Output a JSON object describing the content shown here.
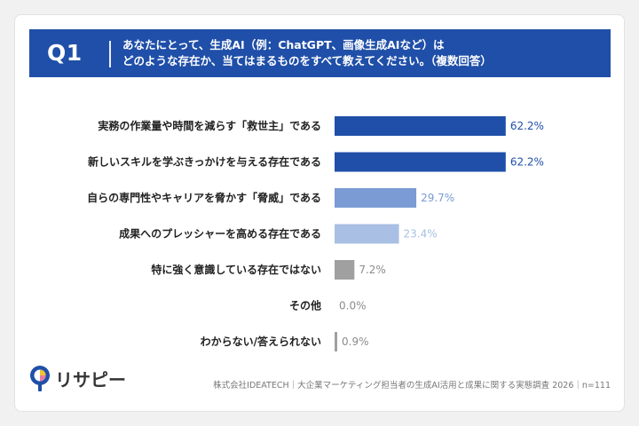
{
  "question": {
    "label": "Q1",
    "line1": "あなたにとって、生成AI（例：ChatGPT、画像生成AIなど）は",
    "line2": "どのような存在か、当てはまるものをすべて教えてください。（複数回答）"
  },
  "chart_data": {
    "type": "bar",
    "orientation": "horizontal",
    "categories": [
      "実務の作業量や時間を減らす「救世主」である",
      "新しいスキルを学ぶきっかけを与える存在である",
      "自らの専門性やキャリアを脅かす「脅威」である",
      "成果へのプレッシャーを高める存在である",
      "特に強く意識している存在ではない",
      "その他",
      "わからない/答えられない"
    ],
    "values": [
      62.2,
      62.2,
      29.7,
      23.4,
      7.2,
      0.0,
      0.9
    ],
    "value_labels": [
      "62.2%",
      "62.2%",
      "29.7%",
      "23.4%",
      "7.2%",
      "0.0%",
      "0.9%"
    ],
    "bar_colors": [
      "#1f4fa8",
      "#1f4fa8",
      "#7a9bd4",
      "#a9bfe3",
      "#a0a0a0",
      "#a0a0a0",
      "#a0a0a0"
    ],
    "label_colors": [
      "#1f4fa8",
      "#1f4fa8",
      "#7a9bd4",
      "#a9bfe3",
      "#8c8c8c",
      "#8c8c8c",
      "#8c8c8c"
    ],
    "xlim": [
      0,
      100
    ],
    "grid": false
  },
  "footer": {
    "source": "株式会社IDEATECH｜大企業マーケティング担当者の生成AI活用と成果に関する実態調査 2026｜n=111"
  },
  "logo": {
    "text": "リサピー",
    "icon": "lightbulb-logo-icon",
    "colors": [
      "#1f4fa8",
      "#f2c230"
    ]
  }
}
